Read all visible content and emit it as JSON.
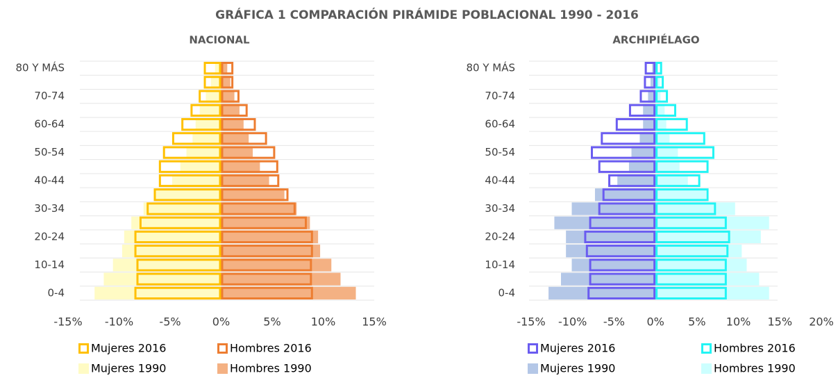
{
  "title": "GRÁFICA 1 COMPARACIÓN PIRÁMIDE POBLACIONAL 1990 - 2016",
  "chart_data": [
    {
      "type": "pyramid",
      "title": "NACIONAL",
      "categories": [
        "0-4",
        null,
        "10-14",
        null,
        "20-24",
        null,
        "30-34",
        null,
        "40-44",
        null,
        "50-54",
        null,
        "60-64",
        null,
        "70-74",
        null,
        "80 Y MÁS"
      ],
      "xlim": [
        -15,
        15
      ],
      "xticks": [
        {
          "value": -15,
          "label": "-15%"
        },
        {
          "value": -10,
          "label": "-10%"
        },
        {
          "value": -5,
          "label": "-5%"
        },
        {
          "value": 0,
          "label": "0%"
        },
        {
          "value": 5,
          "label": "5%"
        },
        {
          "value": 10,
          "label": "10%"
        },
        {
          "value": 15,
          "label": "15%"
        }
      ],
      "grid": true,
      "series": [
        {
          "name": "Mujeres 1990",
          "color": "#fffbc4",
          "style": "fill",
          "values": [
            -12.4,
            -11.5,
            -10.6,
            -9.7,
            -9.5,
            -8.8,
            -7.6,
            -6.5,
            -4.8,
            -4.0,
            -3.4,
            -2.8,
            -2.5,
            -2.1,
            -1.5,
            -1.0,
            -0.6
          ]
        },
        {
          "name": "Hombres 1990",
          "color": "#f4b183",
          "style": "fill",
          "values": [
            13.2,
            11.7,
            10.8,
            9.7,
            9.5,
            8.7,
            7.4,
            6.2,
            4.7,
            3.8,
            3.1,
            2.7,
            2.2,
            1.8,
            1.3,
            0.9,
            0.6
          ]
        },
        {
          "name": "Mujeres 2016",
          "color": "#ffc000",
          "style": "outline",
          "values": [
            -8.5,
            -8.3,
            -8.3,
            -8.5,
            -8.5,
            -8.0,
            -7.3,
            -6.6,
            -6.1,
            -6.1,
            -5.7,
            -4.8,
            -3.9,
            -3.0,
            -2.2,
            -1.7,
            -1.7
          ]
        },
        {
          "name": "Hombres 2016",
          "color": "#ed7d31",
          "style": "outline",
          "values": [
            9.0,
            8.9,
            8.9,
            9.0,
            9.0,
            8.4,
            7.3,
            6.6,
            5.7,
            5.6,
            5.3,
            4.5,
            3.4,
            2.6,
            1.8,
            1.2,
            1.2
          ]
        }
      ],
      "legend_order": [
        2,
        3,
        0,
        1
      ]
    },
    {
      "type": "pyramid",
      "title": "ARCHIPIÉLAGO",
      "categories": [
        "0-4",
        null,
        "10-14",
        null,
        "20-24",
        null,
        "30-34",
        null,
        "40-44",
        null,
        "50-54",
        null,
        "60-64",
        null,
        "70-74",
        null,
        "80 Y MÁS"
      ],
      "xlim": [
        -15,
        20
      ],
      "xticks": [
        {
          "value": -15,
          "label": "-15%"
        },
        {
          "value": -10,
          "label": "-10%"
        },
        {
          "value": -5,
          "label": "-5%"
        },
        {
          "value": 0,
          "label": "0%"
        },
        {
          "value": 5,
          "label": "5%"
        },
        {
          "value": 10,
          "label": "10%"
        },
        {
          "value": 15,
          "label": "15%"
        },
        {
          "value": 20,
          "label": "20%"
        }
      ],
      "grid": true,
      "series": [
        {
          "name": "Mujeres 1990",
          "color": "#b4c7e7",
          "style": "fill",
          "values": [
            -12.9,
            -11.4,
            -10.1,
            -10.8,
            -10.8,
            -12.2,
            -10.1,
            -7.3,
            -4.6,
            -3.2,
            -2.9,
            -1.9,
            -1.5,
            -1.5,
            -0.9,
            -0.6,
            -0.4
          ]
        },
        {
          "name": "Hombres 1990",
          "color": "#ccffff",
          "style": "fill",
          "values": [
            13.7,
            12.5,
            11.0,
            10.4,
            12.7,
            13.7,
            9.6,
            6.1,
            3.9,
            2.9,
            2.7,
            1.7,
            1.3,
            1.1,
            0.6,
            0.5,
            0.3
          ]
        },
        {
          "name": "Mujeres 2016",
          "color": "#6a5cf0",
          "style": "outline",
          "values": [
            -8.2,
            -8.0,
            -8.0,
            -8.4,
            -8.6,
            -8.0,
            -6.9,
            -6.4,
            -5.7,
            -6.9,
            -7.8,
            -6.6,
            -4.8,
            -3.2,
            -1.9,
            -1.4,
            -1.3
          ]
        },
        {
          "name": "Hombres 2016",
          "color": "#22f4f4",
          "style": "outline",
          "values": [
            8.6,
            8.6,
            8.6,
            8.8,
            9.0,
            8.6,
            7.3,
            6.4,
            5.4,
            6.4,
            7.1,
            6.0,
            3.9,
            2.5,
            1.5,
            1.0,
            0.8
          ]
        }
      ],
      "legend_order": [
        2,
        3,
        0,
        1
      ]
    }
  ]
}
